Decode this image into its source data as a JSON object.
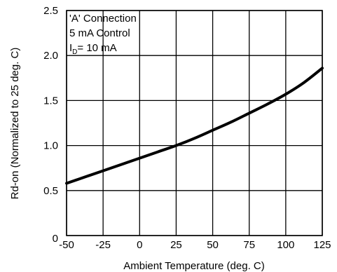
{
  "chart_data": {
    "type": "line",
    "xlabel": "Ambient Temperature (deg. C)",
    "ylabel": "Rd-on (Normalized to 25 deg. C)",
    "xlim": [
      -50,
      125
    ],
    "ylim": [
      0,
      2.5
    ],
    "grid": true,
    "x_ticks": [
      "-50",
      "-25",
      "0",
      "25",
      "50",
      "75",
      "100",
      "125"
    ],
    "y_ticks": [
      "0",
      "0.5",
      "1.0",
      "1.5",
      "2.0",
      "2.5"
    ],
    "annotations": {
      "line1": "'A' Connection",
      "line2": "5 mA Control",
      "line3_main": "I",
      "line3_sub": "D",
      "line3_rest": "= 10 mA"
    },
    "series": [
      {
        "x": [
          -50,
          -37.5,
          -25,
          -12.5,
          0,
          12.5,
          25,
          37.5,
          50,
          62.5,
          75,
          87.5,
          100,
          112.5,
          125
        ],
        "y": [
          0.58,
          0.65,
          0.72,
          0.79,
          0.86,
          0.93,
          1.0,
          1.08,
          1.17,
          1.26,
          1.36,
          1.46,
          1.57,
          1.7,
          1.86
        ]
      }
    ]
  }
}
